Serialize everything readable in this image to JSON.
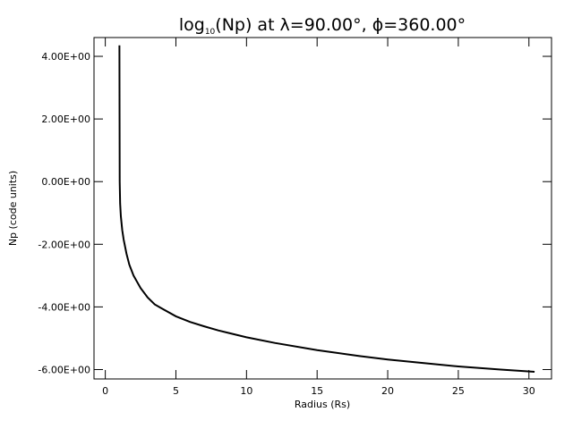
{
  "chart_data": {
    "type": "line",
    "title": {
      "prefix": "log",
      "subscript": "10",
      "suffix": "(Np)  at λ=90.00°, ϕ=360.00°"
    },
    "xlabel": "Radius (Rs)",
    "ylabel": "Np (code units)",
    "xlim": [
      -0.8,
      31.6
    ],
    "ylim": [
      -6.3,
      4.6
    ],
    "xticks": [
      0,
      5,
      10,
      15,
      20,
      25,
      30
    ],
    "yticks": [
      -6,
      -4,
      -2,
      0,
      2,
      4
    ],
    "ytick_labels": [
      "-6.00E+00",
      "-4.00E+00",
      "-2.00E+00",
      "0.00E+00",
      "2.00E+00",
      "4.00E+00"
    ],
    "xtick_labels": [
      "0",
      "5",
      "10",
      "15",
      "20",
      "25",
      "30"
    ],
    "grid": false,
    "series": [
      {
        "x": [
          1.0,
          1.01,
          1.02,
          1.05,
          1.1,
          1.2,
          1.3,
          1.5,
          1.7,
          2.0,
          2.5,
          3.0,
          3.5,
          4.0,
          5.0,
          6.0,
          7.0,
          8.0,
          10.0,
          12.0,
          15.0,
          18.0,
          20.0,
          22.0,
          25.0,
          28.0,
          30.4
        ],
        "y": [
          4.35,
          2.0,
          0.0,
          -0.7,
          -1.1,
          -1.55,
          -1.85,
          -2.3,
          -2.65,
          -3.0,
          -3.4,
          -3.7,
          -3.92,
          -4.05,
          -4.3,
          -4.48,
          -4.62,
          -4.75,
          -4.97,
          -5.15,
          -5.38,
          -5.57,
          -5.68,
          -5.77,
          -5.9,
          -6.0,
          -6.07
        ]
      }
    ]
  }
}
